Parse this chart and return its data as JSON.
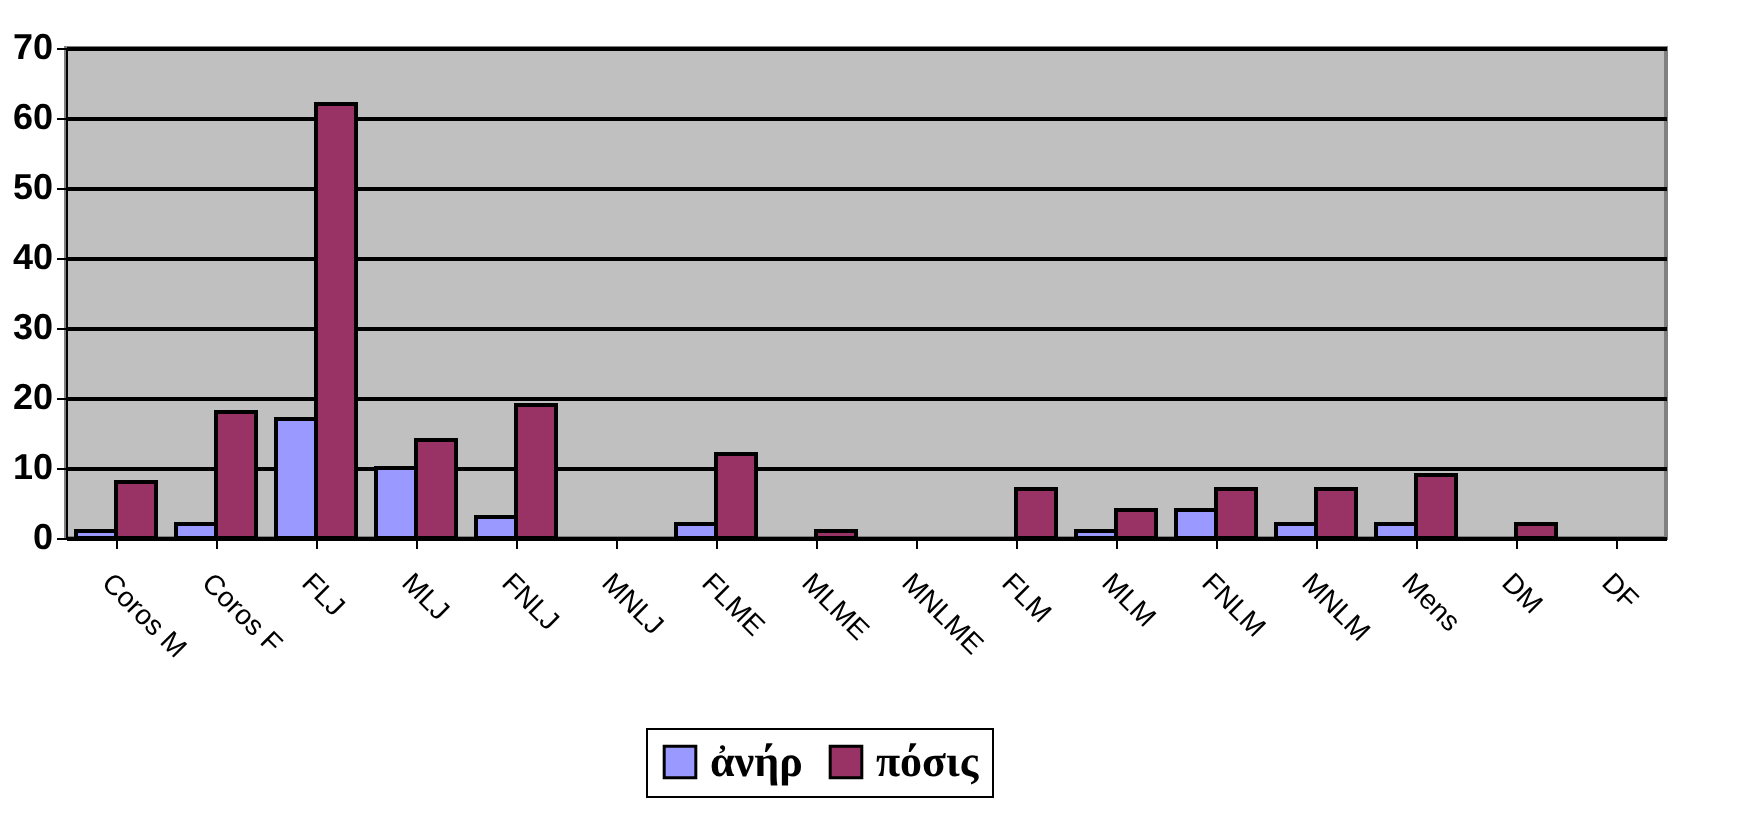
{
  "chart_data": {
    "type": "bar",
    "categories": [
      "Coros M",
      "Coros F",
      "FLJ",
      "MLJ",
      "FNLJ",
      "MNLJ",
      "FLME",
      "MLME",
      "MNLME",
      "FLM",
      "MLM",
      "FNLM",
      "MNLM",
      "Mens",
      "DM",
      "DF"
    ],
    "series": [
      {
        "name": "ἀνήρ",
        "color": "#9999ff",
        "values": [
          1,
          2,
          17,
          10,
          3,
          0,
          2,
          0,
          0,
          0,
          1,
          4,
          2,
          2,
          0,
          0
        ]
      },
      {
        "name": "πόσις",
        "color": "#993366",
        "values": [
          8,
          18,
          62,
          14,
          19,
          0,
          12,
          1,
          0,
          7,
          4,
          7,
          7,
          9,
          2,
          0
        ]
      }
    ],
    "ylim": [
      0,
      70
    ],
    "yticks": [
      0,
      10,
      20,
      30,
      40,
      50,
      60,
      70
    ],
    "grid": "y",
    "legend": "bottom"
  }
}
